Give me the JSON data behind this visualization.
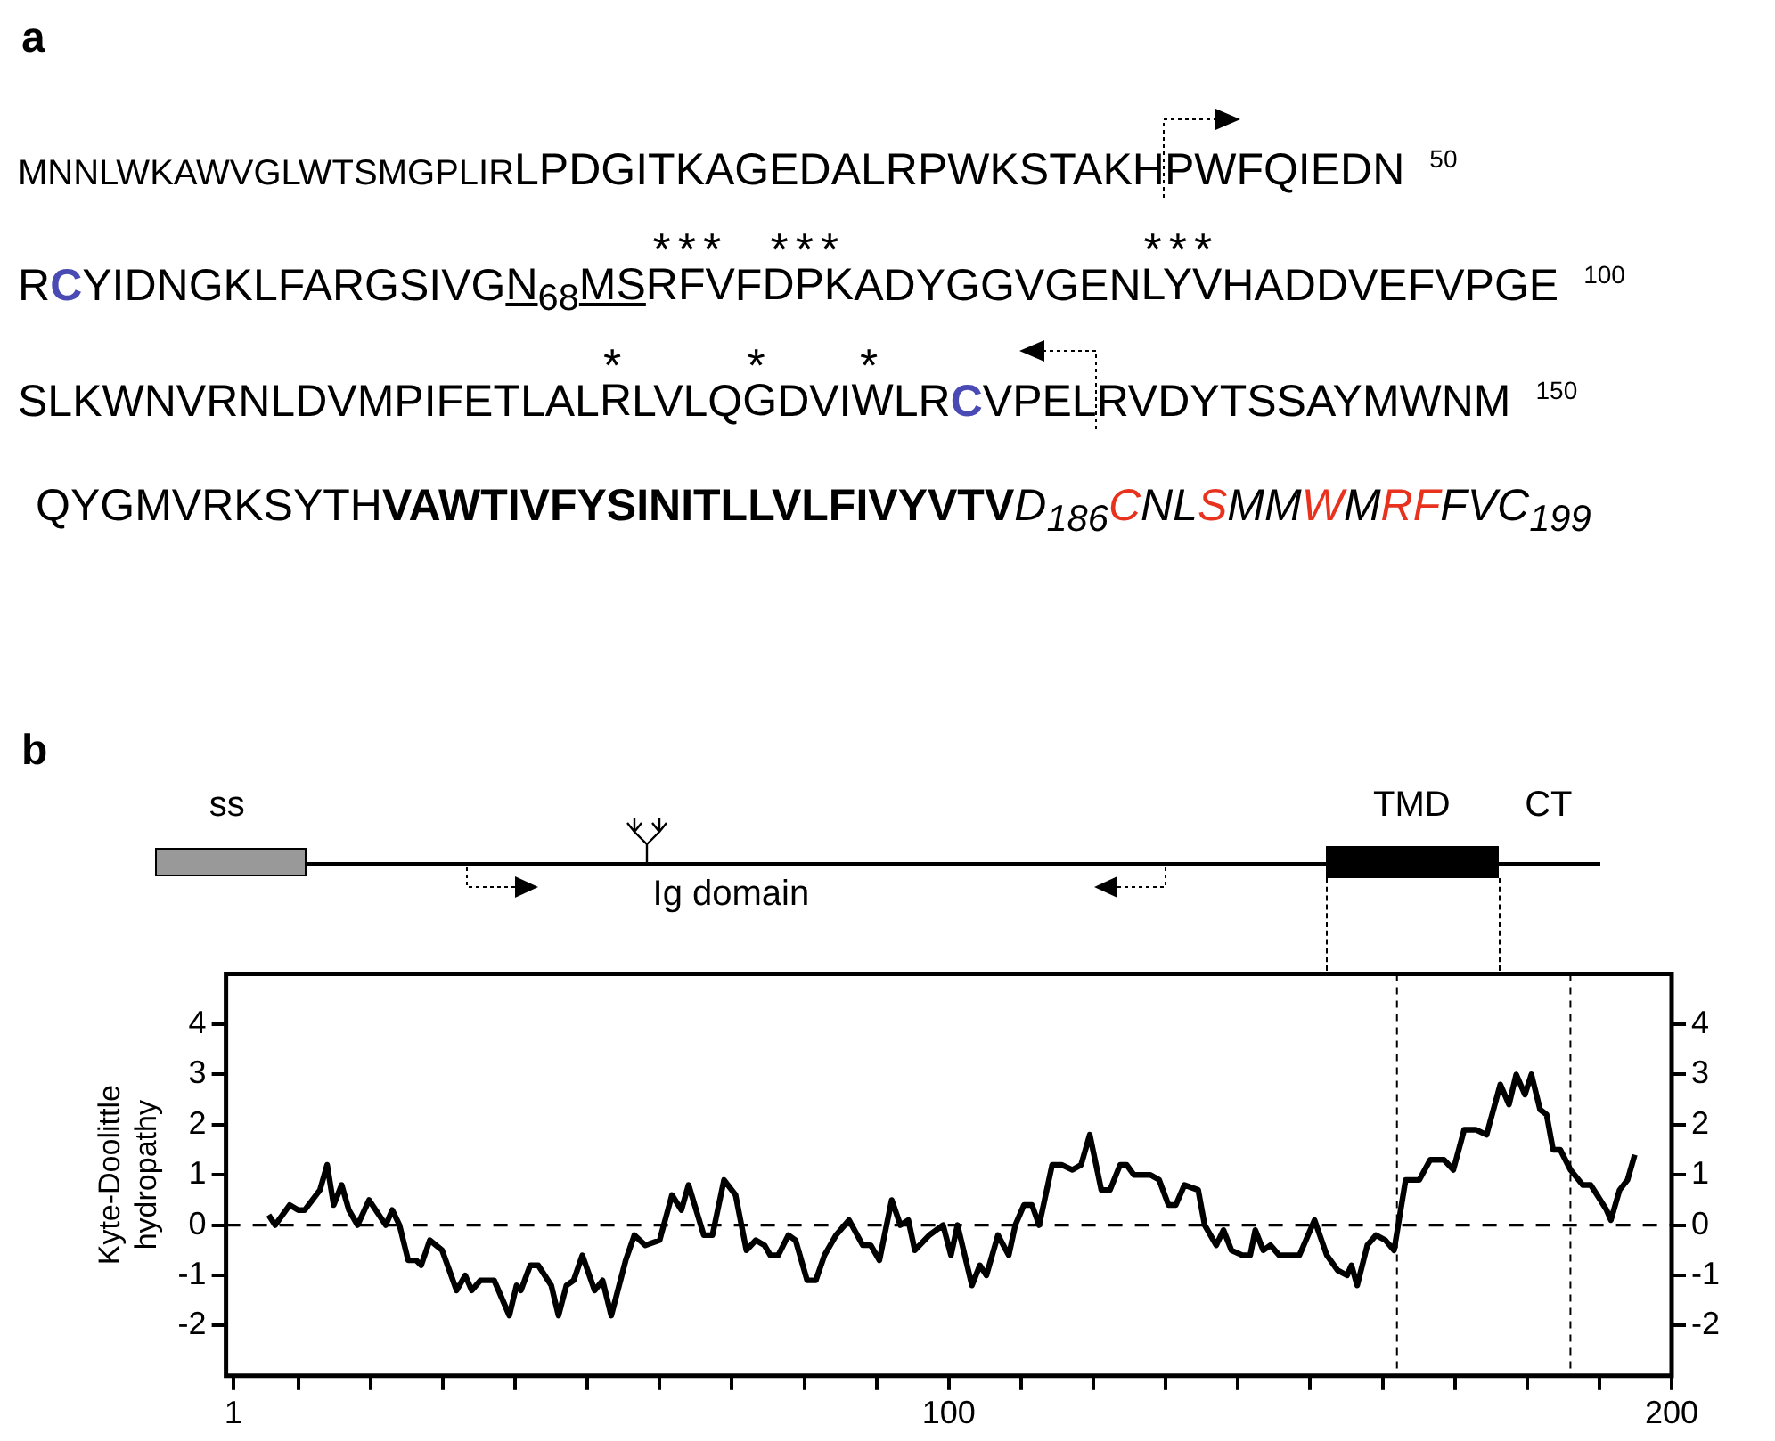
{
  "chart_data": [
    {
      "type": "other",
      "annotations": [
        "a",
        "MNNLWKAWVGLWTSMGPLIR",
        "LPDGITKAGEDALRPWKSTAKH",
        "PWFQIEDN",
        "50",
        "R",
        "C",
        "YIDNGKLFARGSIVG",
        "N$_{68}$MS",
        "***",
        "RFV",
        "F",
        "***",
        "DPK",
        "ADYGGVGEN",
        "***",
        "LYV",
        "HADDVEFVPGE",
        "100",
        "SLKWNVRNLDVMPIFETLAL",
        "*",
        "R",
        "LVLQ",
        "*",
        "G",
        "DVI",
        "*",
        "W",
        "LR",
        "C",
        "VPEL",
        "RVDYTSSAYMWNM",
        "150",
        "QYGMVRKSYTH",
        "VAWTIVFYSINITLLVLFIVYVTV",
        "D$_{186}$",
        "C",
        "NL",
        "S",
        "MM",
        "W",
        "M",
        "RF",
        "FVC$_{199}$"
      ]
    },
    {
      "type": "line",
      "ylabel": "Kyte-Doolittle hydropathy",
      "annotations": [
        "b",
        "ss",
        "TMD",
        "CT",
        "Ig domain"
      ],
      "xlim": [
        0,
        200
      ],
      "xticks": [
        {
          "value": 1,
          "label": "1"
        },
        {
          "value": 10,
          "label": null
        },
        {
          "value": 20,
          "label": null
        },
        {
          "value": 30,
          "label": null
        },
        {
          "value": 40,
          "label": null
        },
        {
          "value": 50,
          "label": null
        },
        {
          "value": 60,
          "label": null
        },
        {
          "value": 70,
          "label": null
        },
        {
          "value": 80,
          "label": null
        },
        {
          "value": 90,
          "label": null
        },
        {
          "value": 100,
          "label": "100"
        },
        {
          "value": 110,
          "label": null
        },
        {
          "value": 120,
          "label": null
        },
        {
          "value": 130,
          "label": null
        },
        {
          "value": 140,
          "label": null
        },
        {
          "value": 150,
          "label": null
        },
        {
          "value": 160,
          "label": null
        },
        {
          "value": 170,
          "label": null
        },
        {
          "value": 180,
          "label": null
        },
        {
          "value": 190,
          "label": null
        },
        {
          "value": 200,
          "label": "200"
        }
      ],
      "ylim": [
        -3,
        5
      ],
      "yticks": [
        -2,
        -1,
        0,
        1,
        2,
        3,
        4
      ],
      "y2lim": [
        -3,
        5
      ],
      "y2ticks": [
        -2,
        -1,
        0,
        1,
        2,
        3,
        4
      ],
      "grid": false,
      "legend": false,
      "marker": "none",
      "ref_lines": [
        {
          "axis": "y",
          "value": 0,
          "line_style": "dashed"
        },
        {
          "axis": "x",
          "value": 162,
          "line_style": "dashed"
        },
        {
          "axis": "x",
          "value": 186,
          "line_style": "dashed"
        }
      ],
      "series": [
        {
          "color": "#000000",
          "line_style": "solid",
          "x": [
            5.9,
            6.8,
            8.8,
            10,
            10.9,
            13,
            14,
            14.9,
            16,
            17,
            18.2,
            19.8,
            22.1,
            23,
            24,
            25.2,
            26.3,
            27,
            28.2,
            29.9,
            31.9,
            33.1,
            34,
            35.2,
            37.1,
            39.2,
            40.2,
            40.8,
            42.1,
            43.2,
            45,
            46,
            47.1,
            48.1,
            49.3,
            51,
            52.1,
            53.3,
            55.3,
            56.5,
            58,
            60,
            61.7,
            63,
            64,
            66.1,
            67.3,
            68.9,
            70.5,
            72,
            73.3,
            74.5,
            75.3,
            76.4,
            77.8,
            78.8,
            80.4,
            81.6,
            82.8,
            84.4,
            86.2,
            88.1,
            89.2,
            90.4,
            92.1,
            93.3,
            94.4,
            95.3,
            97.3,
            99.2,
            100.3,
            101.2,
            103.2,
            104.3,
            105.2,
            106.8,
            108.3,
            109.2,
            110.4,
            111.5,
            112.5,
            114.3,
            115.6,
            117.1,
            118.3,
            119.5,
            121.1,
            122.3,
            123.7,
            124.6,
            125.6,
            127.9,
            129.1,
            130.4,
            131.4,
            132.6,
            134.5,
            135.4,
            137,
            138,
            139.1,
            140.6,
            141.7,
            142.4,
            143.5,
            144.5,
            145.7,
            148.5,
            150.6,
            152.3,
            153.8,
            155.1,
            155.7,
            156.5,
            157.9,
            159.1,
            160.4,
            161.6,
            163.2,
            165.1,
            166.6,
            168.5,
            169.8,
            171.3,
            172.9,
            174.4,
            176.3,
            177.5,
            178.5,
            179.7,
            180.6,
            181.8,
            182.7,
            183.6,
            184.6,
            186,
            187.7,
            188.8,
            189.7,
            191,
            191.6,
            192.8,
            193.9,
            194.9
          ],
          "values": [
            0.2,
            0,
            0.4,
            0.3,
            0.3,
            0.7,
            1.2,
            0.4,
            0.8,
            0.3,
            0,
            0.5,
            0,
            0.3,
            0,
            -0.7,
            -0.7,
            -0.8,
            -0.3,
            -0.5,
            -1.3,
            -1,
            -1.3,
            -1.1,
            -1.1,
            -1.8,
            -1.2,
            -1.3,
            -0.8,
            -0.8,
            -1.2,
            -1.8,
            -1.2,
            -1.1,
            -0.6,
            -1.3,
            -1.1,
            -1.8,
            -0.7,
            -0.2,
            -0.4,
            -0.3,
            0.6,
            0.3,
            0.8,
            -0.2,
            -0.2,
            0.9,
            0.6,
            -0.5,
            -0.3,
            -0.4,
            -0.6,
            -0.6,
            -0.2,
            -0.3,
            -1.1,
            -1.1,
            -0.6,
            -0.2,
            0.1,
            -0.4,
            -0.4,
            -0.7,
            0.5,
            0,
            0.1,
            -0.5,
            -0.2,
            0,
            -0.6,
            0,
            -1.2,
            -0.8,
            -1,
            -0.2,
            -0.6,
            0,
            0.4,
            0.4,
            0,
            1.2,
            1.2,
            1.1,
            1.2,
            1.8,
            0.7,
            0.7,
            1.2,
            1.2,
            1,
            1,
            0.9,
            0.4,
            0.4,
            0.8,
            0.7,
            0,
            -0.4,
            -0.1,
            -0.5,
            -0.6,
            -0.6,
            -0.1,
            -0.5,
            -0.4,
            -0.6,
            -0.6,
            0.1,
            -0.6,
            -0.9,
            -1,
            -0.8,
            -1.2,
            -0.4,
            -0.2,
            -0.3,
            -0.5,
            0.9,
            0.9,
            1.3,
            1.3,
            1.1,
            1.9,
            1.9,
            1.8,
            2.8,
            2.4,
            3,
            2.6,
            3,
            2.3,
            2.2,
            1.5,
            1.5,
            1.1,
            0.8,
            0.8,
            0.6,
            0.3,
            0.1,
            0.7,
            0.9,
            1.4
          ]
        }
      ]
    }
  ]
}
